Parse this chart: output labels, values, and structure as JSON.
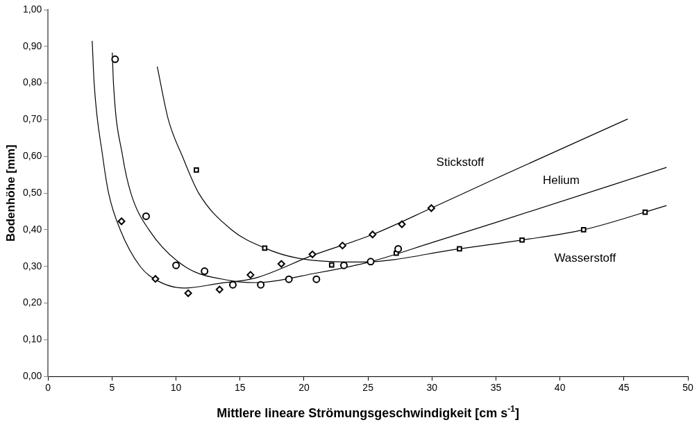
{
  "chart_data": {
    "type": "scatter",
    "xlabel": "Mittlere lineare Strömungsgeschwindigkeit [cm s$^{-1}$]",
    "ylabel": "Bodenhöhe [mm]",
    "xlim": [
      0,
      50
    ],
    "xticks": [
      0,
      5,
      10,
      15,
      20,
      25,
      30,
      35,
      40,
      45,
      50
    ],
    "ylim": [
      0,
      1
    ],
    "yticks": [
      {
        "value": 0,
        "label": "0,00"
      },
      {
        "value": 0.1,
        "label": "0,10"
      },
      {
        "value": 0.2,
        "label": "0,20"
      },
      {
        "value": 0.3,
        "label": "0,30"
      },
      {
        "value": 0.4,
        "label": "0,40"
      },
      {
        "value": 0.5,
        "label": "0,50"
      },
      {
        "value": 0.6,
        "label": "0,60"
      },
      {
        "value": 0.7,
        "label": "0,70"
      },
      {
        "value": 0.8,
        "label": "0,80"
      },
      {
        "value": 0.9,
        "label": "0,90"
      },
      {
        "value": 1,
        "label": "1,00"
      }
    ],
    "grid": false,
    "legend": false,
    "series": [
      {
        "marker": "diamond",
        "color": "#000000",
        "x": [
          5.74,
          8.39,
          10.95,
          13.4,
          15.82,
          18.23,
          20.66,
          23.01,
          25.36,
          27.65,
          29.95
        ],
        "values": [
          0.423,
          0.266,
          0.227,
          0.237,
          0.277,
          0.307,
          0.333,
          0.357,
          0.387,
          0.415,
          0.459
        ]
      },
      {
        "marker": "circle",
        "color": "#000000",
        "x": [
          5.24,
          7.66,
          10.0,
          12.23,
          14.44,
          16.62,
          18.82,
          20.97,
          23.12,
          25.21,
          27.36
        ],
        "values": [
          0.865,
          0.437,
          0.303,
          0.287,
          0.25,
          0.25,
          0.265,
          0.265,
          0.303,
          0.313,
          0.348
        ]
      },
      {
        "marker": "square",
        "color": "#000000",
        "x": [
          11.59,
          16.93,
          22.16,
          27.21,
          32.15,
          37.04,
          41.85,
          46.66
        ],
        "values": [
          0.563,
          0.35,
          0.304,
          0.336,
          0.348,
          0.372,
          0.4,
          0.448
        ]
      },
      {
        "type": "line",
        "name": "Stickstoff",
        "marker": "none",
        "color": "#000000",
        "x": [
          3.45,
          3.6,
          4.27,
          4.73,
          5.64,
          7.2,
          8.6,
          10.67,
          13.4,
          16.16,
          20.66,
          25.36,
          29.95,
          35,
          45.3
        ],
        "values": [
          0.915,
          0.8,
          0.6,
          0.5,
          0.4,
          0.3,
          0.26,
          0.241,
          0.254,
          0.268,
          0.33,
          0.387,
          0.459,
          0.54,
          0.702
        ]
      },
      {
        "type": "line",
        "name": "Helium",
        "marker": "none",
        "color": "#000000",
        "x": [
          5.02,
          5.11,
          5.83,
          6.47,
          7.88,
          10.68,
          14.33,
          16.16,
          20.97,
          25.21,
          30,
          35,
          48.33
        ],
        "values": [
          0.883,
          0.8,
          0.6,
          0.5,
          0.4,
          0.3,
          0.261,
          0.256,
          0.282,
          0.313,
          0.365,
          0.42,
          0.57
        ]
      },
      {
        "type": "line",
        "name": "Wasserstoff",
        "marker": "none",
        "color": "#000000",
        "x": [
          8.53,
          9.4,
          10.5,
          11.77,
          14.34,
          16.95,
          19.46,
          24.5,
          32.15,
          37.04,
          41.85,
          48.33
        ],
        "values": [
          0.845,
          0.7,
          0.6,
          0.5,
          0.4,
          0.35,
          0.323,
          0.312,
          0.348,
          0.372,
          0.4,
          0.466
        ]
      }
    ]
  }
}
